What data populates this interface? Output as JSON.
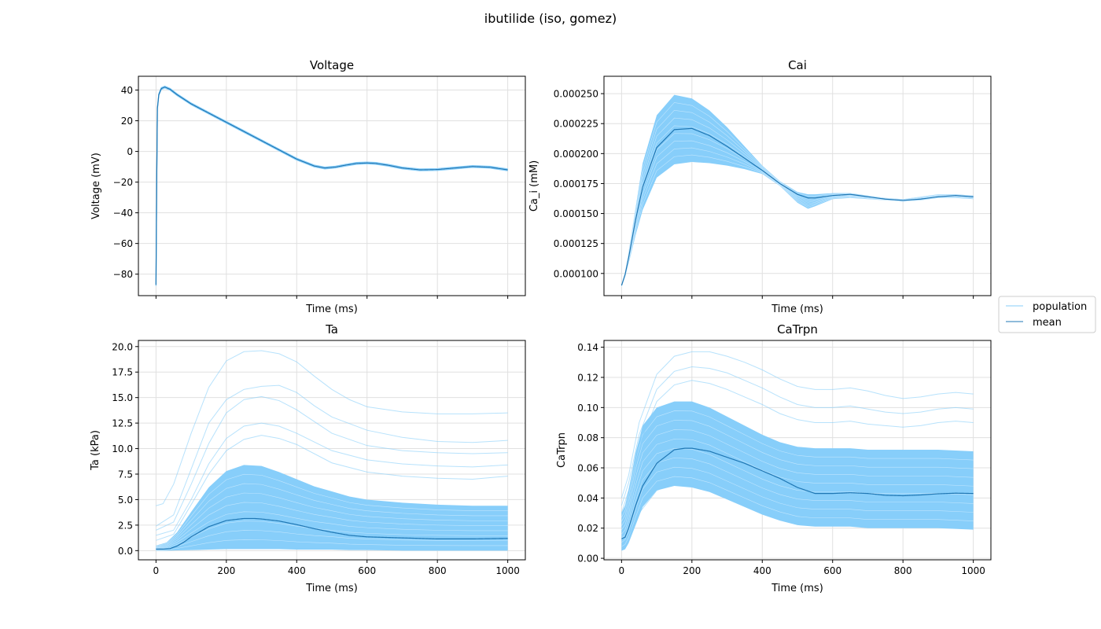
{
  "suptitle": "ibutilide (iso, gomez)",
  "colors": {
    "population": "#87cefa",
    "mean": "#1f77b4",
    "grid": "#e0e0e0"
  },
  "legend": {
    "placement": "right",
    "entries": [
      "population",
      "mean"
    ]
  },
  "chart_data": [
    {
      "type": "line",
      "title": "Voltage",
      "xlabel": "Time (ms)",
      "ylabel": "Voltage (mV)",
      "xlim": [
        -50,
        1050
      ],
      "ylim": [
        -94,
        49
      ],
      "xticks": [
        0,
        200,
        400,
        600,
        800,
        1000
      ],
      "show_xticklabels": false,
      "yticks": [
        -80,
        -60,
        -40,
        -20,
        0,
        20,
        40
      ],
      "yticklabels": [
        "−80",
        "−60",
        "−40",
        "−20",
        "0",
        "20",
        "40"
      ],
      "grid": true,
      "population_spread": 0.6,
      "series": [
        {
          "name": "mean",
          "x": [
            0,
            2,
            4,
            8,
            15,
            25,
            40,
            60,
            100,
            150,
            200,
            250,
            300,
            350,
            400,
            450,
            480,
            510,
            540,
            570,
            600,
            625,
            660,
            700,
            750,
            800,
            850,
            900,
            950,
            1000
          ],
          "y": [
            -87,
            -20,
            28,
            37,
            41,
            42,
            40.5,
            37,
            31,
            25,
            19,
            13,
            7,
            1,
            -5,
            -9.5,
            -10.8,
            -10.2,
            -8.9,
            -7.8,
            -7.5,
            -7.8,
            -9.0,
            -10.8,
            -12.0,
            -11.8,
            -10.8,
            -9.8,
            -10.3,
            -12.0
          ]
        }
      ]
    },
    {
      "type": "line",
      "title": "Cai",
      "xlabel": "Time (ms)",
      "ylabel": "Ca_i (mM)",
      "xlim": [
        -50,
        1050
      ],
      "ylim": [
        8.15e-05,
        0.0002645
      ],
      "xticks": [
        0,
        200,
        400,
        600,
        800,
        1000
      ],
      "show_xticklabels": false,
      "yticks": [
        0.0001,
        0.000125,
        0.00015,
        0.000175,
        0.0002,
        0.000225,
        0.00025
      ],
      "yticklabels": [
        "0.000100",
        "0.000125",
        "0.000150",
        "0.000175",
        "0.000200",
        "0.000225",
        "0.000250"
      ],
      "grid": true,
      "population_band": {
        "x": [
          0,
          10,
          20,
          40,
          60,
          100,
          150,
          200,
          250,
          300,
          350,
          400,
          450,
          500,
          530,
          550,
          600,
          650,
          700,
          750,
          800,
          850,
          900,
          950,
          1000
        ],
        "upper": [
          9.05e-05,
          0.000101,
          0.000118,
          0.000155,
          0.000192,
          0.000232,
          0.000249,
          0.000246,
          0.000236,
          0.000222,
          0.000206,
          0.00019,
          0.000177,
          0.000168,
          0.000166,
          0.000166,
          0.000167,
          0.000167,
          0.000165,
          0.000163,
          0.000162,
          0.000164,
          0.000166,
          0.000166,
          0.000165
        ],
        "lower": [
          8.85e-05,
          9.7e-05,
          0.000108,
          0.000132,
          0.000153,
          0.00018,
          0.000191,
          0.000193,
          0.000192,
          0.00019,
          0.000187,
          0.000183,
          0.000173,
          0.000159,
          0.000154,
          0.000156,
          0.000162,
          0.000163,
          0.000162,
          0.000161,
          0.00016,
          0.000161,
          0.000163,
          0.000163,
          0.000162
        ]
      },
      "series": [
        {
          "name": "mean",
          "x": [
            0,
            10,
            20,
            40,
            60,
            100,
            150,
            200,
            250,
            300,
            350,
            400,
            450,
            500,
            530,
            550,
            600,
            650,
            700,
            750,
            800,
            850,
            900,
            950,
            1000
          ],
          "y": [
            9e-05,
            9.9e-05,
            0.000113,
            0.000145,
            0.000172,
            0.000205,
            0.00022,
            0.000221,
            0.000215,
            0.000206,
            0.000196,
            0.000186,
            0.000175,
            0.000166,
            0.000163,
            0.000163,
            0.000165,
            0.000166,
            0.000164,
            0.000162,
            0.000161,
            0.000162,
            0.000164,
            0.000165,
            0.000164
          ]
        }
      ]
    },
    {
      "type": "line",
      "title": "Ta",
      "xlabel": "Time (ms)",
      "ylabel": "Ta (kPa)",
      "xlim": [
        -50,
        1050
      ],
      "ylim": [
        -0.9,
        20.6
      ],
      "xticks": [
        0,
        200,
        400,
        600,
        800,
        1000
      ],
      "xticklabels": [
        "0",
        "200",
        "400",
        "600",
        "800",
        "1000"
      ],
      "show_xticklabels": true,
      "yticks": [
        0,
        2.5,
        5,
        7.5,
        10,
        12.5,
        15,
        17.5,
        20
      ],
      "yticklabels": [
        "0.0",
        "2.5",
        "5.0",
        "7.5",
        "10.0",
        "12.5",
        "15.0",
        "17.5",
        "20.0"
      ],
      "grid": true,
      "population_band": {
        "x": [
          0,
          30,
          60,
          100,
          150,
          200,
          250,
          300,
          350,
          400,
          450,
          500,
          550,
          600,
          700,
          800,
          900,
          1000
        ],
        "upper": [
          0.5,
          0.8,
          1.8,
          3.8,
          6.2,
          7.8,
          8.4,
          8.3,
          7.7,
          7.0,
          6.3,
          5.8,
          5.3,
          5.0,
          4.7,
          4.5,
          4.4,
          4.4
        ],
        "lower": [
          0,
          0,
          0.02,
          0.05,
          0.1,
          0.15,
          0.15,
          0.15,
          0.15,
          0.1,
          0.1,
          0.1,
          0.05,
          0.05,
          0,
          0,
          0,
          0
        ]
      },
      "extra_traces": [
        {
          "x": [
            0,
            20,
            50,
            100,
            150,
            200,
            250,
            300,
            350,
            400,
            450,
            500,
            550,
            600,
            700,
            800,
            900,
            1000
          ],
          "y": [
            4.4,
            4.6,
            6.5,
            11.5,
            16,
            18.6,
            19.5,
            19.6,
            19.3,
            18.5,
            17.1,
            15.8,
            14.8,
            14.1,
            13.6,
            13.4,
            13.4,
            13.5
          ]
        },
        {
          "x": [
            0,
            50,
            100,
            150,
            200,
            250,
            300,
            350,
            400,
            450,
            500,
            600,
            700,
            800,
            900,
            1000
          ],
          "y": [
            2.4,
            3.5,
            8,
            12.5,
            14.8,
            15.8,
            16.1,
            16.2,
            15.5,
            14.2,
            13.1,
            11.8,
            11.1,
            10.7,
            10.6,
            10.8
          ]
        },
        {
          "x": [
            0,
            50,
            100,
            150,
            200,
            250,
            300,
            350,
            400,
            500,
            600,
            700,
            800,
            900,
            1000
          ],
          "y": [
            2.0,
            2.8,
            6.5,
            10.5,
            13.5,
            14.8,
            15.1,
            14.7,
            13.8,
            11.5,
            10.3,
            9.8,
            9.6,
            9.5,
            9.6
          ]
        },
        {
          "x": [
            0,
            50,
            100,
            150,
            200,
            250,
            300,
            350,
            400,
            500,
            600,
            700,
            800,
            900,
            1000
          ],
          "y": [
            1.5,
            2.0,
            5,
            8.5,
            11,
            12.2,
            12.5,
            12.2,
            11.5,
            9.8,
            8.9,
            8.5,
            8.3,
            8.2,
            8.4
          ]
        },
        {
          "x": [
            0,
            50,
            100,
            150,
            200,
            250,
            300,
            350,
            400,
            500,
            600,
            700,
            800,
            900,
            1000
          ],
          "y": [
            1.0,
            1.6,
            4.5,
            7.5,
            9.8,
            10.9,
            11.3,
            11.0,
            10.4,
            8.6,
            7.7,
            7.3,
            7.1,
            7.0,
            7.3
          ]
        }
      ],
      "series": [
        {
          "name": "mean",
          "x": [
            0,
            20,
            40,
            60,
            80,
            100,
            150,
            200,
            250,
            280,
            300,
            350,
            400,
            450,
            500,
            550,
            600,
            700,
            800,
            900,
            1000
          ],
          "y": [
            0.15,
            0.15,
            0.2,
            0.45,
            0.85,
            1.35,
            2.35,
            2.95,
            3.15,
            3.15,
            3.1,
            2.9,
            2.55,
            2.15,
            1.8,
            1.5,
            1.35,
            1.25,
            1.15,
            1.15,
            1.2
          ]
        }
      ]
    },
    {
      "type": "line",
      "title": "CaTrpn",
      "xlabel": "Time (ms)",
      "ylabel": "CaTrpn",
      "xlim": [
        -50,
        1050
      ],
      "ylim": [
        -0.001,
        0.1445
      ],
      "xticks": [
        0,
        200,
        400,
        600,
        800,
        1000
      ],
      "xticklabels": [
        "0",
        "200",
        "400",
        "600",
        "800",
        "1000"
      ],
      "show_xticklabels": true,
      "yticks": [
        0,
        0.02,
        0.04,
        0.06,
        0.08,
        0.1,
        0.12,
        0.14
      ],
      "yticklabels": [
        "0.00",
        "0.02",
        "0.04",
        "0.06",
        "0.08",
        "0.10",
        "0.12",
        "0.14"
      ],
      "grid": true,
      "population_band": {
        "x": [
          0,
          10,
          20,
          40,
          60,
          100,
          150,
          200,
          250,
          300,
          350,
          400,
          450,
          500,
          550,
          600,
          650,
          700,
          800,
          900,
          1000
        ],
        "upper": [
          0.03,
          0.035,
          0.045,
          0.07,
          0.088,
          0.1,
          0.104,
          0.104,
          0.1,
          0.094,
          0.088,
          0.082,
          0.077,
          0.074,
          0.073,
          0.073,
          0.073,
          0.072,
          0.072,
          0.072,
          0.071
        ],
        "lower": [
          0.005,
          0.006,
          0.01,
          0.022,
          0.034,
          0.045,
          0.048,
          0.047,
          0.044,
          0.039,
          0.034,
          0.029,
          0.025,
          0.022,
          0.021,
          0.021,
          0.021,
          0.02,
          0.02,
          0.02,
          0.019
        ]
      },
      "extra_traces": [
        {
          "x": [
            0,
            20,
            50,
            100,
            150,
            200,
            250,
            300,
            350,
            400,
            450,
            500,
            550,
            600,
            650,
            700,
            750,
            800,
            850,
            900,
            950,
            1000
          ],
          "y": [
            0.04,
            0.055,
            0.09,
            0.122,
            0.134,
            0.137,
            0.137,
            0.134,
            0.13,
            0.125,
            0.119,
            0.114,
            0.112,
            0.112,
            0.113,
            0.111,
            0.108,
            0.106,
            0.107,
            0.109,
            0.11,
            0.109
          ]
        },
        {
          "x": [
            0,
            20,
            50,
            100,
            150,
            200,
            250,
            300,
            350,
            400,
            450,
            500,
            550,
            600,
            650,
            700,
            750,
            800,
            850,
            900,
            950,
            1000
          ],
          "y": [
            0.035,
            0.05,
            0.082,
            0.112,
            0.124,
            0.127,
            0.126,
            0.123,
            0.118,
            0.113,
            0.107,
            0.102,
            0.1,
            0.1,
            0.101,
            0.099,
            0.097,
            0.096,
            0.097,
            0.099,
            0.1,
            0.099
          ]
        },
        {
          "x": [
            0,
            20,
            50,
            100,
            150,
            200,
            250,
            300,
            350,
            400,
            450,
            500,
            550,
            600,
            650,
            700,
            750,
            800,
            850,
            900,
            950,
            1000
          ],
          "y": [
            0.03,
            0.045,
            0.075,
            0.104,
            0.115,
            0.118,
            0.116,
            0.112,
            0.107,
            0.102,
            0.096,
            0.092,
            0.09,
            0.09,
            0.091,
            0.089,
            0.088,
            0.087,
            0.088,
            0.09,
            0.091,
            0.09
          ]
        },
        {
          "x": [
            0,
            20,
            50,
            100,
            150,
            200,
            250,
            300,
            350,
            400,
            450,
            500,
            550,
            600,
            700,
            800,
            900,
            1000
          ],
          "y": [
            0.008,
            0.015,
            0.03,
            0.045,
            0.05,
            0.049,
            0.046,
            0.041,
            0.036,
            0.031,
            0.027,
            0.024,
            0.022,
            0.022,
            0.021,
            0.021,
            0.021,
            0.02
          ]
        }
      ],
      "series": [
        {
          "name": "mean",
          "x": [
            0,
            10,
            20,
            40,
            60,
            100,
            150,
            180,
            200,
            250,
            300,
            350,
            400,
            450,
            500,
            550,
            600,
            650,
            700,
            750,
            800,
            850,
            900,
            950,
            1000
          ],
          "y": [
            0.013,
            0.014,
            0.02,
            0.035,
            0.048,
            0.063,
            0.072,
            0.073,
            0.073,
            0.071,
            0.067,
            0.063,
            0.058,
            0.053,
            0.047,
            0.043,
            0.043,
            0.0435,
            0.043,
            0.0418,
            0.0415,
            0.042,
            0.0428,
            0.0432,
            0.043
          ]
        }
      ]
    }
  ]
}
